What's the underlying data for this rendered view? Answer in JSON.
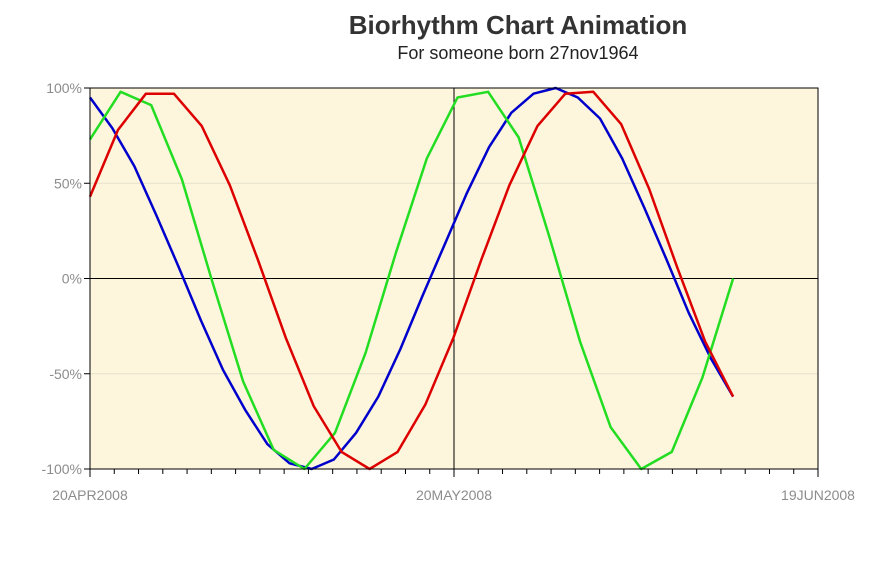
{
  "chart_data": {
    "type": "line",
    "title": "Biorhythm Chart Animation",
    "subtitle": "For someone born 27nov1964",
    "xlabel": "",
    "ylabel": "",
    "x_range": [
      "20APR2008",
      "19JUN2008"
    ],
    "x_ticks": [
      "20APR2008",
      "20MAY2008",
      "19JUN2008"
    ],
    "ylim": [
      -100,
      100
    ],
    "y_ticks": [
      "100%",
      "50%",
      "0%",
      "-50%",
      "-100%"
    ],
    "y_tick_values": [
      100,
      50,
      0,
      -50,
      -100
    ],
    "grid": true,
    "reference_lines": {
      "y": 0,
      "x": "20MAY2008"
    },
    "background": "#fdf6dc",
    "series": [
      {
        "color": "#0000cc",
        "x_start": "20APR2008",
        "x_end": "12JUN2008",
        "period_days": 33,
        "values": [
          95,
          79,
          59,
          33,
          6,
          -22,
          -48,
          -69,
          -87,
          -97,
          -100,
          -95,
          -81,
          -62,
          -37,
          -9,
          18,
          45,
          69,
          87,
          97,
          100,
          95,
          84,
          63,
          37,
          10,
          -18,
          -42,
          -62
        ]
      },
      {
        "color": "#22dd22",
        "x_start": "20APR2008",
        "x_end": "12JUN2008",
        "period_days": 23,
        "values": [
          73,
          98,
          91,
          52,
          -2,
          -54,
          -90,
          -100,
          -81,
          -39,
          14,
          63,
          95,
          98,
          74,
          22,
          -33,
          -78,
          -100,
          -91,
          -52,
          0
        ]
      },
      {
        "color": "#dd0000",
        "x_start": "20APR2008",
        "x_end": "12JUN2008",
        "period_days": 28,
        "values": [
          43,
          78,
          97,
          97,
          80,
          49,
          10,
          -31,
          -67,
          -91,
          -100,
          -91,
          -66,
          -31,
          10,
          49,
          80,
          97,
          98,
          81,
          47,
          6,
          -33,
          -62
        ]
      }
    ]
  }
}
